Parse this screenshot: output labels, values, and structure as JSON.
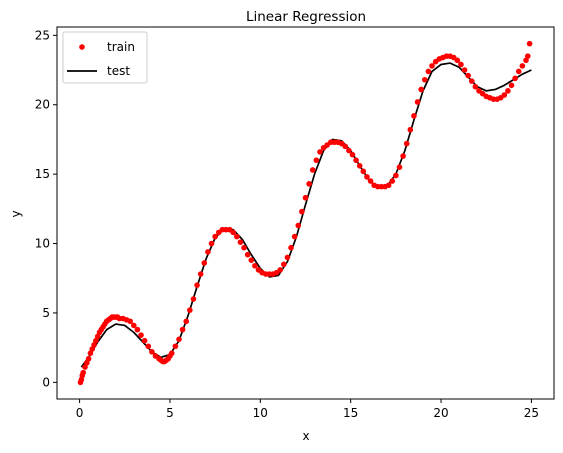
{
  "chart_data": {
    "type": "scatter",
    "title": "Linear Regression",
    "xlabel": "x",
    "ylabel": "y",
    "xlim": [
      -1.25,
      26.25
    ],
    "ylim": [
      -1.2,
      25.6
    ],
    "xticks": [
      0,
      5,
      10,
      15,
      20,
      25
    ],
    "yticks": [
      0,
      5,
      10,
      15,
      20,
      25
    ],
    "grid": false,
    "legend_placement": "top-left",
    "series": [
      {
        "name": "train",
        "kind": "scatter",
        "color": "#ff0000",
        "points": [
          [
            0.05,
            0.0
          ],
          [
            0.1,
            0.2
          ],
          [
            0.15,
            0.5
          ],
          [
            0.2,
            0.7
          ],
          [
            0.3,
            1.1
          ],
          [
            0.4,
            1.4
          ],
          [
            0.5,
            1.7
          ],
          [
            0.6,
            2.1
          ],
          [
            0.7,
            2.4
          ],
          [
            0.8,
            2.7
          ],
          [
            0.9,
            3.0
          ],
          [
            1.0,
            3.3
          ],
          [
            1.1,
            3.6
          ],
          [
            1.2,
            3.8
          ],
          [
            1.3,
            4.0
          ],
          [
            1.4,
            4.2
          ],
          [
            1.5,
            4.4
          ],
          [
            1.6,
            4.5
          ],
          [
            1.7,
            4.6
          ],
          [
            1.8,
            4.7
          ],
          [
            1.9,
            4.7
          ],
          [
            2.0,
            4.7
          ],
          [
            2.1,
            4.7
          ],
          [
            2.2,
            4.6
          ],
          [
            2.4,
            4.6
          ],
          [
            2.6,
            4.5
          ],
          [
            2.8,
            4.4
          ],
          [
            3.0,
            4.1
          ],
          [
            3.2,
            3.8
          ],
          [
            3.4,
            3.4
          ],
          [
            3.6,
            3.0
          ],
          [
            3.8,
            2.6
          ],
          [
            4.0,
            2.2
          ],
          [
            4.2,
            1.9
          ],
          [
            4.4,
            1.7
          ],
          [
            4.5,
            1.6
          ],
          [
            4.6,
            1.5
          ],
          [
            4.7,
            1.5
          ],
          [
            4.8,
            1.6
          ],
          [
            4.9,
            1.7
          ],
          [
            5.0,
            1.9
          ],
          [
            5.1,
            2.1
          ],
          [
            5.3,
            2.6
          ],
          [
            5.5,
            3.1
          ],
          [
            5.7,
            3.8
          ],
          [
            5.9,
            4.4
          ],
          [
            6.1,
            5.2
          ],
          [
            6.3,
            6.0
          ],
          [
            6.5,
            7.0
          ],
          [
            6.7,
            7.8
          ],
          [
            6.9,
            8.6
          ],
          [
            7.1,
            9.4
          ],
          [
            7.3,
            10.0
          ],
          [
            7.5,
            10.5
          ],
          [
            7.7,
            10.8
          ],
          [
            7.9,
            11.0
          ],
          [
            8.1,
            11.0
          ],
          [
            8.3,
            11.0
          ],
          [
            8.5,
            10.8
          ],
          [
            8.7,
            10.5
          ],
          [
            8.9,
            10.1
          ],
          [
            9.1,
            9.7
          ],
          [
            9.3,
            9.2
          ],
          [
            9.5,
            8.8
          ],
          [
            9.7,
            8.4
          ],
          [
            9.9,
            8.1
          ],
          [
            10.1,
            7.9
          ],
          [
            10.3,
            7.8
          ],
          [
            10.5,
            7.8
          ],
          [
            10.7,
            7.8
          ],
          [
            10.9,
            7.9
          ],
          [
            11.1,
            8.1
          ],
          [
            11.3,
            8.5
          ],
          [
            11.5,
            9.0
          ],
          [
            11.7,
            9.7
          ],
          [
            11.9,
            10.5
          ],
          [
            12.1,
            11.3
          ],
          [
            12.3,
            12.3
          ],
          [
            12.5,
            13.3
          ],
          [
            12.7,
            14.3
          ],
          [
            12.9,
            15.3
          ],
          [
            13.1,
            16.0
          ],
          [
            13.3,
            16.6
          ],
          [
            13.5,
            16.9
          ],
          [
            13.7,
            17.1
          ],
          [
            13.9,
            17.3
          ],
          [
            14.1,
            17.3
          ],
          [
            14.3,
            17.3
          ],
          [
            14.5,
            17.2
          ],
          [
            14.7,
            17.0
          ],
          [
            14.9,
            16.7
          ],
          [
            15.1,
            16.4
          ],
          [
            15.3,
            16.0
          ],
          [
            15.5,
            15.6
          ],
          [
            15.7,
            15.2
          ],
          [
            15.9,
            14.8
          ],
          [
            16.1,
            14.5
          ],
          [
            16.3,
            14.2
          ],
          [
            16.5,
            14.1
          ],
          [
            16.7,
            14.1
          ],
          [
            16.9,
            14.1
          ],
          [
            17.1,
            14.2
          ],
          [
            17.3,
            14.5
          ],
          [
            17.5,
            14.9
          ],
          [
            17.7,
            15.5
          ],
          [
            17.9,
            16.3
          ],
          [
            18.1,
            17.2
          ],
          [
            18.3,
            18.2
          ],
          [
            18.5,
            19.2
          ],
          [
            18.7,
            20.2
          ],
          [
            18.9,
            21.1
          ],
          [
            19.1,
            21.8
          ],
          [
            19.3,
            22.4
          ],
          [
            19.5,
            22.8
          ],
          [
            19.7,
            23.1
          ],
          [
            19.9,
            23.3
          ],
          [
            20.1,
            23.4
          ],
          [
            20.3,
            23.5
          ],
          [
            20.5,
            23.5
          ],
          [
            20.7,
            23.4
          ],
          [
            20.9,
            23.2
          ],
          [
            21.1,
            22.9
          ],
          [
            21.3,
            22.5
          ],
          [
            21.5,
            22.1
          ],
          [
            21.7,
            21.7
          ],
          [
            21.9,
            21.3
          ],
          [
            22.1,
            21.0
          ],
          [
            22.3,
            20.8
          ],
          [
            22.5,
            20.6
          ],
          [
            22.7,
            20.5
          ],
          [
            22.9,
            20.4
          ],
          [
            23.1,
            20.4
          ],
          [
            23.3,
            20.5
          ],
          [
            23.5,
            20.7
          ],
          [
            23.7,
            21.0
          ],
          [
            23.9,
            21.4
          ],
          [
            24.1,
            21.9
          ],
          [
            24.3,
            22.4
          ],
          [
            24.5,
            22.8
          ],
          [
            24.7,
            23.2
          ],
          [
            24.8,
            23.5
          ],
          [
            24.9,
            24.4
          ]
        ]
      },
      {
        "name": "test",
        "kind": "line",
        "color": "#000000",
        "points": [
          [
            0.1,
            1.1
          ],
          [
            0.5,
            1.8
          ],
          [
            1.0,
            2.9
          ],
          [
            1.5,
            3.8
          ],
          [
            2.0,
            4.2
          ],
          [
            2.5,
            4.1
          ],
          [
            3.0,
            3.6
          ],
          [
            3.5,
            2.9
          ],
          [
            4.0,
            2.2
          ],
          [
            4.5,
            1.8
          ],
          [
            5.0,
            2.0
          ],
          [
            5.5,
            3.0
          ],
          [
            6.0,
            4.8
          ],
          [
            6.5,
            6.9
          ],
          [
            7.0,
            8.9
          ],
          [
            7.5,
            10.4
          ],
          [
            8.0,
            11.1
          ],
          [
            8.5,
            11.0
          ],
          [
            9.0,
            10.3
          ],
          [
            9.5,
            9.2
          ],
          [
            10.0,
            8.2
          ],
          [
            10.5,
            7.6
          ],
          [
            11.0,
            7.7
          ],
          [
            11.5,
            8.7
          ],
          [
            12.0,
            10.5
          ],
          [
            12.5,
            12.8
          ],
          [
            13.0,
            15.0
          ],
          [
            13.5,
            16.7
          ],
          [
            14.0,
            17.5
          ],
          [
            14.5,
            17.4
          ],
          [
            15.0,
            16.7
          ],
          [
            15.5,
            15.6
          ],
          [
            16.0,
            14.6
          ],
          [
            16.5,
            14.0
          ],
          [
            17.0,
            14.1
          ],
          [
            17.5,
            15.0
          ],
          [
            18.0,
            16.7
          ],
          [
            18.5,
            18.9
          ],
          [
            19.0,
            21.0
          ],
          [
            19.5,
            22.4
          ],
          [
            20.0,
            22.9
          ],
          [
            20.5,
            23.0
          ],
          [
            21.0,
            22.7
          ],
          [
            21.5,
            22.0
          ],
          [
            22.0,
            21.3
          ],
          [
            22.5,
            21.0
          ],
          [
            23.0,
            21.1
          ],
          [
            23.5,
            21.4
          ],
          [
            24.0,
            21.8
          ],
          [
            24.5,
            22.2
          ],
          [
            25.0,
            22.5
          ]
        ]
      }
    ]
  }
}
